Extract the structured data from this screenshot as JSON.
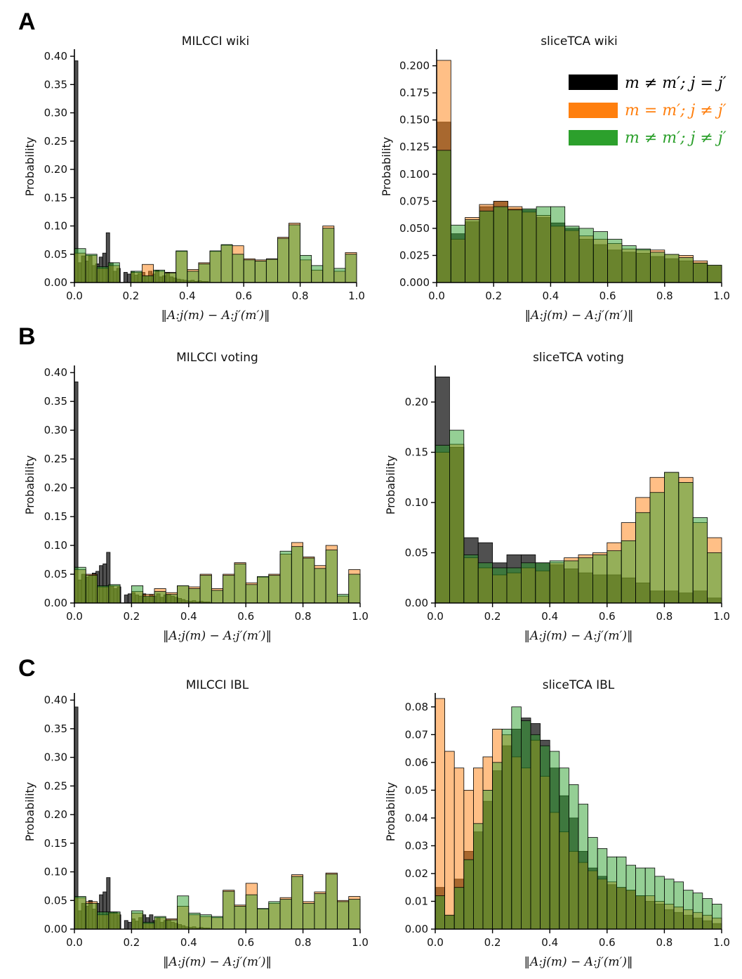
{
  "panel_labels": [
    "A",
    "B",
    "C"
  ],
  "series_names": [
    "m≠m′; j=j′",
    "m=m′; j≠j′",
    "m≠m′; j≠j′"
  ],
  "colors": {
    "black": "#151515",
    "orange": "#ff7f0e",
    "green": "#2ca02c"
  },
  "legend": [
    {
      "label": "m ≠ m′; j = j′",
      "color": "#000000"
    },
    {
      "label": "m = m′; j ≠ j′",
      "color": "#ff7f0e"
    },
    {
      "label": "m ≠ m′; j ≠ j′",
      "color": "#2ca02c"
    }
  ],
  "chart_data": [
    {
      "type": "bar",
      "title": "MILCCI wiki",
      "ylabel": "Probability",
      "xlabel": "‖A:j(m) − A:j′(m′)‖",
      "xlim": [
        0,
        1
      ],
      "ylim": [
        0,
        0.41
      ],
      "xticks": [
        "0.0",
        "0.2",
        "0.4",
        "0.6",
        "0.8",
        "1.0"
      ],
      "xtick_values": [
        0,
        0.2,
        0.4,
        0.6,
        0.8,
        1.0
      ],
      "yticks": [
        "0.00",
        "0.05",
        "0.10",
        "0.15",
        "0.20",
        "0.25",
        "0.30",
        "0.35",
        "0.40"
      ],
      "ytick_values": [
        0,
        0.05,
        0.1,
        0.15,
        0.2,
        0.25,
        0.3,
        0.35,
        0.4
      ],
      "series": [
        {
          "name": "m≠m′; j=j′",
          "color": "black",
          "bins": 80,
          "values": [
            0.392,
            0.035,
            0.047,
            0.038,
            0.047,
            0.03,
            0.033,
            0.045,
            0.052,
            0.088,
            0.035,
            0.02,
            0.025,
            0.0,
            0.018,
            0.015,
            0.02,
            0.013,
            0.016,
            0.018,
            0.012,
            0.02,
            0.015,
            0.021,
            0.01,
            0.012,
            0.018,
            0.01,
            0.008,
            0.006,
            0.005,
            0.004,
            0.003,
            0.004,
            0.002,
            0.003,
            0.002,
            0.002,
            0,
            0,
            0,
            0,
            0,
            0,
            0,
            0,
            0,
            0,
            0,
            0,
            0,
            0,
            0,
            0,
            0,
            0,
            0,
            0,
            0,
            0,
            0,
            0,
            0,
            0,
            0,
            0,
            0,
            0,
            0,
            0,
            0,
            0,
            0,
            0,
            0,
            0,
            0,
            0,
            0,
            0
          ]
        },
        {
          "name": "m=m′; j≠j′",
          "color": "orange",
          "bins": 25,
          "values": [
            0.052,
            0.048,
            0.025,
            0.03,
            0.0,
            0.018,
            0.032,
            0.02,
            0.018,
            0.055,
            0.023,
            0.035,
            0.055,
            0.066,
            0.065,
            0.042,
            0.04,
            0.042,
            0.08,
            0.105,
            0.04,
            0.022,
            0.1,
            0.02,
            0.053
          ]
        },
        {
          "name": "m≠m′; j≠j′",
          "color": "green",
          "bins": 25,
          "values": [
            0.06,
            0.05,
            0.028,
            0.035,
            0.0,
            0.02,
            0.012,
            0.022,
            0.017,
            0.056,
            0.02,
            0.033,
            0.056,
            0.067,
            0.05,
            0.04,
            0.038,
            0.041,
            0.078,
            0.102,
            0.048,
            0.03,
            0.096,
            0.025,
            0.05
          ]
        }
      ]
    },
    {
      "type": "bar",
      "title": "sliceTCA wiki",
      "ylabel": "Probability",
      "xlabel": "‖A:j(m) − A:j′(m′)‖",
      "xlim": [
        0,
        1
      ],
      "ylim": [
        0,
        0.214
      ],
      "legend": true,
      "xticks": [
        "0.0",
        "0.2",
        "0.4",
        "0.6",
        "0.8",
        "1.0"
      ],
      "xtick_values": [
        0,
        0.2,
        0.4,
        0.6,
        0.8,
        1.0
      ],
      "yticks": [
        "0.000",
        "0.025",
        "0.050",
        "0.075",
        "0.100",
        "0.125",
        "0.150",
        "0.175",
        "0.200"
      ],
      "ytick_values": [
        0,
        0.025,
        0.05,
        0.075,
        0.1,
        0.125,
        0.15,
        0.175,
        0.2
      ],
      "series": [
        {
          "name": "m≠m′; j=j′",
          "color": "black",
          "bins": 20,
          "values": [
            0.148,
            0.045,
            0.056,
            0.07,
            0.075,
            0.068,
            0.067,
            0.06,
            0.055,
            0.05,
            0.04,
            0.035,
            0.03,
            0.028,
            0.027,
            0.024,
            0.022,
            0.02,
            0.018,
            0.015
          ]
        },
        {
          "name": "m=m′; j≠j′",
          "color": "orange",
          "bins": 20,
          "values": [
            0.205,
            0.04,
            0.06,
            0.072,
            0.075,
            0.07,
            0.065,
            0.062,
            0.052,
            0.048,
            0.043,
            0.04,
            0.036,
            0.031,
            0.03,
            0.03,
            0.026,
            0.025,
            0.02,
            0.016
          ]
        },
        {
          "name": "m≠m′; j≠j′",
          "color": "green",
          "bins": 20,
          "values": [
            0.122,
            0.053,
            0.058,
            0.066,
            0.07,
            0.067,
            0.068,
            0.07,
            0.07,
            0.052,
            0.05,
            0.047,
            0.04,
            0.034,
            0.031,
            0.028,
            0.026,
            0.023,
            0.018,
            0.016
          ]
        }
      ]
    },
    {
      "type": "bar",
      "title": "MILCCI voting",
      "ylabel": "Probability",
      "xlabel": "‖A:j(m) − A:j′(m′)‖",
      "xlim": [
        0,
        1
      ],
      "ylim": [
        0,
        0.41
      ],
      "xticks": [
        "0.0",
        "0.2",
        "0.4",
        "0.6",
        "0.8",
        "1.0"
      ],
      "xtick_values": [
        0,
        0.2,
        0.4,
        0.6,
        0.8,
        1.0
      ],
      "yticks": [
        "0.00",
        "0.05",
        "0.10",
        "0.15",
        "0.20",
        "0.25",
        "0.30",
        "0.35",
        "0.40"
      ],
      "ytick_values": [
        0,
        0.05,
        0.1,
        0.15,
        0.2,
        0.25,
        0.3,
        0.35,
        0.4
      ],
      "series": [
        {
          "name": "m≠m′; j=j′",
          "color": "black",
          "bins": 80,
          "values": [
            0.384,
            0.04,
            0.05,
            0.045,
            0.048,
            0.052,
            0.055,
            0.065,
            0.068,
            0.088,
            0.03,
            0.025,
            0.028,
            0.0,
            0.014,
            0.016,
            0.018,
            0.014,
            0.012,
            0.016,
            0.01,
            0.015,
            0.012,
            0.016,
            0.01,
            0.014,
            0.015,
            0.012,
            0.01,
            0.008,
            0.006,
            0.004,
            0.003,
            0.004,
            0.002,
            0.003,
            0.002,
            0.002,
            0,
            0,
            0,
            0,
            0,
            0,
            0,
            0,
            0,
            0,
            0,
            0,
            0,
            0,
            0,
            0,
            0,
            0,
            0,
            0,
            0,
            0,
            0,
            0,
            0,
            0,
            0,
            0,
            0,
            0,
            0,
            0,
            0,
            0,
            0,
            0,
            0,
            0,
            0,
            0,
            0,
            0
          ]
        },
        {
          "name": "m=m′; j≠j′",
          "color": "orange",
          "bins": 25,
          "values": [
            0.058,
            0.05,
            0.028,
            0.03,
            0.0,
            0.02,
            0.015,
            0.025,
            0.018,
            0.03,
            0.028,
            0.05,
            0.025,
            0.05,
            0.07,
            0.035,
            0.045,
            0.05,
            0.085,
            0.105,
            0.08,
            0.065,
            0.1,
            0.012,
            0.058
          ]
        },
        {
          "name": "m≠m′; j≠j′",
          "color": "green",
          "bins": 25,
          "values": [
            0.062,
            0.048,
            0.03,
            0.032,
            0.0,
            0.03,
            0.012,
            0.02,
            0.015,
            0.03,
            0.025,
            0.048,
            0.022,
            0.048,
            0.068,
            0.032,
            0.046,
            0.048,
            0.09,
            0.098,
            0.078,
            0.06,
            0.092,
            0.015,
            0.05
          ]
        }
      ]
    },
    {
      "type": "bar",
      "title": "sliceTCA voting",
      "ylabel": "Probability",
      "xlabel": "‖A:j(m) − A:j′(m′)‖",
      "xlim": [
        0,
        1
      ],
      "ylim": [
        0,
        0.235
      ],
      "xticks": [
        "0.0",
        "0.2",
        "0.4",
        "0.6",
        "0.8",
        "1.0"
      ],
      "xtick_values": [
        0,
        0.2,
        0.4,
        0.6,
        0.8,
        1.0
      ],
      "yticks": [
        "0.00",
        "0.05",
        "0.10",
        "0.15",
        "0.20"
      ],
      "ytick_values": [
        0,
        0.05,
        0.1,
        0.15,
        0.2
      ],
      "series": [
        {
          "name": "m≠m′; j=j′",
          "color": "black",
          "bins": 20,
          "values": [
            0.225,
            0.155,
            0.065,
            0.06,
            0.04,
            0.048,
            0.048,
            0.04,
            0.038,
            0.034,
            0.03,
            0.028,
            0.028,
            0.025,
            0.02,
            0.012,
            0.012,
            0.01,
            0.012,
            0.005
          ]
        },
        {
          "name": "m=m′; j≠j′",
          "color": "orange",
          "bins": 20,
          "values": [
            0.15,
            0.158,
            0.045,
            0.035,
            0.028,
            0.03,
            0.035,
            0.032,
            0.04,
            0.045,
            0.048,
            0.05,
            0.06,
            0.08,
            0.105,
            0.125,
            0.13,
            0.125,
            0.08,
            0.065
          ]
        },
        {
          "name": "m≠m′; j≠j′",
          "color": "green",
          "bins": 20,
          "values": [
            0.157,
            0.172,
            0.048,
            0.04,
            0.035,
            0.035,
            0.04,
            0.04,
            0.042,
            0.042,
            0.045,
            0.048,
            0.052,
            0.062,
            0.09,
            0.11,
            0.13,
            0.12,
            0.085,
            0.05
          ]
        }
      ]
    },
    {
      "type": "bar",
      "title": "MILCCI IBL",
      "ylabel": "Probability",
      "xlabel": "‖A:j(m) − A:j′(m′)‖",
      "xlim": [
        0,
        1
      ],
      "ylim": [
        0,
        0.41
      ],
      "xticks": [
        "0.0",
        "0.2",
        "0.4",
        "0.6",
        "0.8",
        "1.0"
      ],
      "xtick_values": [
        0,
        0.2,
        0.4,
        0.6,
        0.8,
        1.0
      ],
      "yticks": [
        "0.00",
        "0.05",
        "0.10",
        "0.15",
        "0.20",
        "0.25",
        "0.30",
        "0.35",
        "0.40"
      ],
      "ytick_values": [
        0,
        0.05,
        0.1,
        0.15,
        0.2,
        0.25,
        0.3,
        0.35,
        0.4
      ],
      "series": [
        {
          "name": "m≠m′; j=j′",
          "color": "black",
          "bins": 80,
          "values": [
            0.388,
            0.032,
            0.045,
            0.04,
            0.05,
            0.035,
            0.045,
            0.06,
            0.065,
            0.09,
            0.03,
            0.03,
            0.025,
            0.0,
            0.015,
            0.012,
            0.018,
            0.014,
            0.02,
            0.025,
            0.02,
            0.025,
            0.015,
            0.02,
            0.012,
            0.015,
            0.016,
            0.012,
            0.01,
            0.008,
            0.006,
            0.004,
            0.003,
            0.004,
            0.002,
            0.003,
            0.002,
            0.002,
            0,
            0,
            0,
            0,
            0,
            0,
            0,
            0,
            0,
            0,
            0,
            0,
            0,
            0,
            0,
            0,
            0,
            0,
            0,
            0,
            0,
            0,
            0,
            0,
            0,
            0,
            0,
            0,
            0,
            0,
            0,
            0,
            0,
            0,
            0,
            0,
            0,
            0,
            0,
            0,
            0,
            0
          ]
        },
        {
          "name": "m=m′; j≠j′",
          "color": "orange",
          "bins": 25,
          "values": [
            0.055,
            0.048,
            0.025,
            0.028,
            0.0,
            0.028,
            0.01,
            0.02,
            0.018,
            0.04,
            0.025,
            0.022,
            0.02,
            0.068,
            0.042,
            0.08,
            0.035,
            0.045,
            0.055,
            0.095,
            0.048,
            0.065,
            0.098,
            0.05,
            0.057
          ]
        },
        {
          "name": "m≠m′; j≠j′",
          "color": "green",
          "bins": 25,
          "values": [
            0.057,
            0.045,
            0.03,
            0.03,
            0.0,
            0.032,
            0.012,
            0.022,
            0.016,
            0.058,
            0.028,
            0.025,
            0.022,
            0.066,
            0.04,
            0.06,
            0.036,
            0.048,
            0.052,
            0.092,
            0.045,
            0.062,
            0.096,
            0.048,
            0.052
          ]
        }
      ]
    },
    {
      "type": "bar",
      "title": "sliceTCA IBL",
      "ylabel": "Probability",
      "xlabel": "‖A:j(m) − A:j′(m′)‖",
      "xlim": [
        0,
        1
      ],
      "ylim": [
        0,
        0.0845
      ],
      "xticks": [
        "0.0",
        "0.2",
        "0.4",
        "0.6",
        "0.8",
        "1.0"
      ],
      "xtick_values": [
        0,
        0.2,
        0.4,
        0.6,
        0.8,
        1.0
      ],
      "yticks": [
        "0.00",
        "0.01",
        "0.02",
        "0.03",
        "0.04",
        "0.05",
        "0.06",
        "0.07",
        "0.08"
      ],
      "ytick_values": [
        0,
        0.01,
        0.02,
        0.03,
        0.04,
        0.05,
        0.06,
        0.07,
        0.08
      ],
      "series": [
        {
          "name": "m≠m′; j=j′",
          "color": "black",
          "bins": 30,
          "values": [
            0.015,
            0.005,
            0.018,
            0.028,
            0.035,
            0.046,
            0.057,
            0.066,
            0.072,
            0.076,
            0.074,
            0.068,
            0.058,
            0.048,
            0.04,
            0.028,
            0.022,
            0.019,
            0.016,
            0.015,
            0.014,
            0.012,
            0.01,
            0.009,
            0.007,
            0.006,
            0.005,
            0.004,
            0.003,
            0.002
          ]
        },
        {
          "name": "m=m′; j≠j′",
          "color": "orange",
          "bins": 30,
          "values": [
            0.083,
            0.064,
            0.058,
            0.05,
            0.058,
            0.062,
            0.072,
            0.07,
            0.062,
            0.058,
            0.068,
            0.055,
            0.042,
            0.035,
            0.028,
            0.024,
            0.021,
            0.018,
            0.017,
            0.015,
            0.014,
            0.012,
            0.012,
            0.01,
            0.009,
            0.008,
            0.007,
            0.006,
            0.005,
            0.004
          ]
        },
        {
          "name": "m≠m′; j≠j′",
          "color": "green",
          "bins": 30,
          "values": [
            0.012,
            0.005,
            0.015,
            0.025,
            0.038,
            0.05,
            0.06,
            0.072,
            0.08,
            0.075,
            0.07,
            0.066,
            0.064,
            0.058,
            0.052,
            0.045,
            0.033,
            0.029,
            0.026,
            0.026,
            0.023,
            0.022,
            0.022,
            0.019,
            0.018,
            0.017,
            0.014,
            0.013,
            0.011,
            0.009
          ]
        }
      ]
    }
  ]
}
